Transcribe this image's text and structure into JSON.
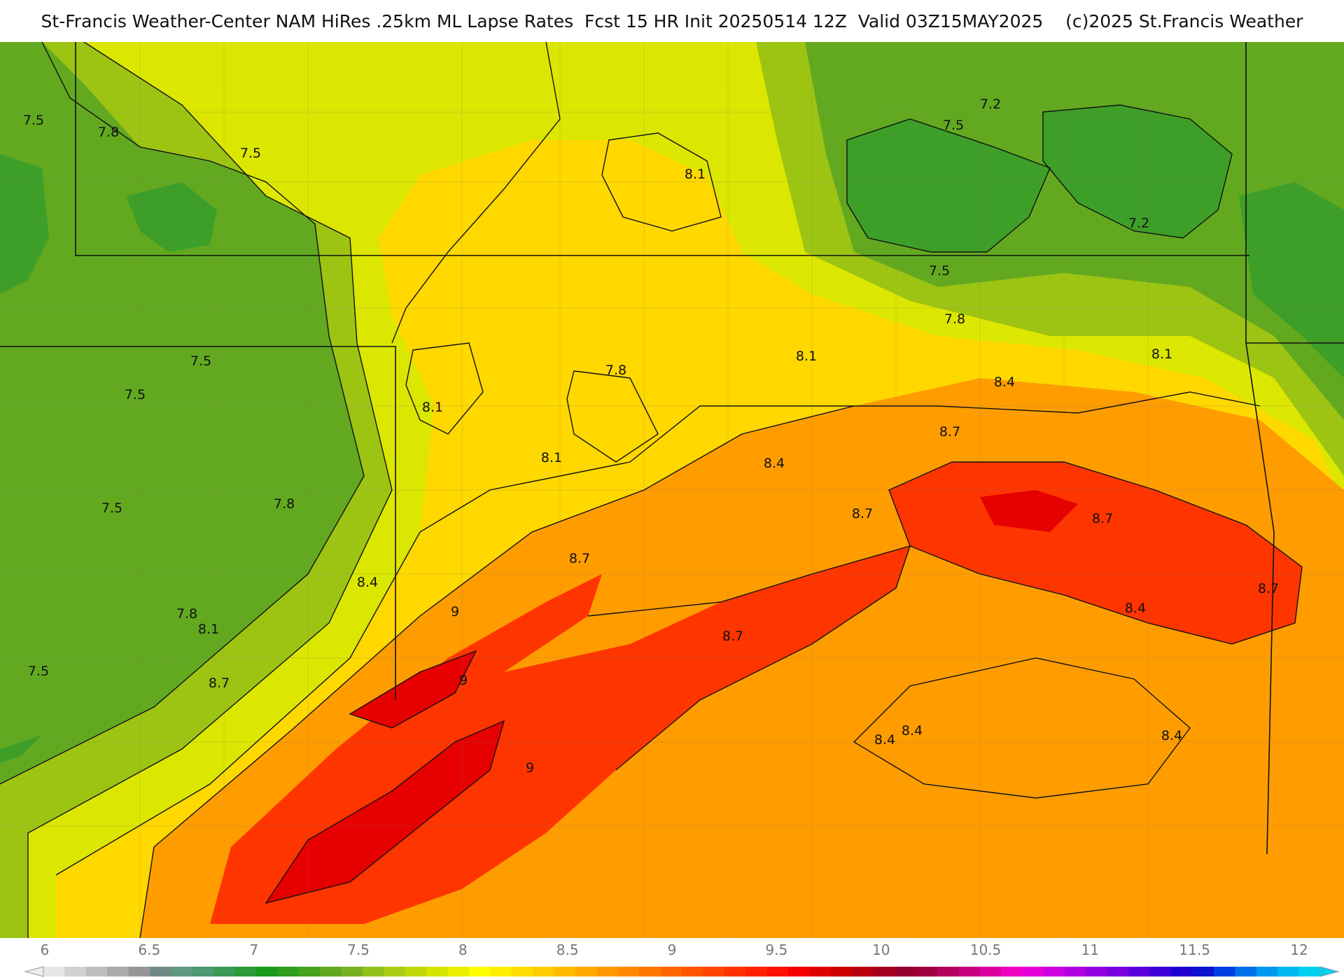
{
  "header": {
    "title": "St-Francis Weather-Center NAM HiRes .25km ML Lapse Rates  Fcst 15 HR Init 20250514 12Z  Valid 03Z15MAY2025    (c)2025 St.Francis Weather"
  },
  "map": {
    "field": "ML Lapse Rates",
    "contour_labels": [
      "7.5",
      "7.8",
      "7.5",
      "8.1",
      "7.2",
      "7.5",
      "7.2",
      "7.5",
      "7.8",
      "8.1",
      "7.5",
      "7.5",
      "8.1",
      "7.8",
      "8.1",
      "8.4",
      "8.1",
      "8.4",
      "8.7",
      "7.5",
      "7.8",
      "8.7",
      "8.7",
      "8.7",
      "8.4",
      "7.8",
      "8.1",
      "9",
      "8.7",
      "8.7",
      "8.4",
      "7.5",
      "8.7",
      "9",
      "9",
      "8.4",
      "8.4",
      "8.4"
    ]
  },
  "color_scale": {
    "tick_labels": [
      "6",
      "6.5",
      "7",
      "7.5",
      "8",
      "8.5",
      "9",
      "9.5",
      "10",
      "10.5",
      "11",
      "11.5",
      "12"
    ],
    "min": 6,
    "max": 12,
    "step": 0.1,
    "colors": [
      "#e6e6e6",
      "#d2d2d2",
      "#bebebe",
      "#aaaaaa",
      "#969696",
      "#6f8a86",
      "#5f9a80",
      "#4d9970",
      "#3b9a55",
      "#2a9a38",
      "#1a9a1a",
      "#2f9e1c",
      "#47a31e",
      "#5fa820",
      "#78b020",
      "#92c01c",
      "#a9cd14",
      "#c0d90a",
      "#d6e500",
      "#ebef00",
      "#ffff00",
      "#ffee00",
      "#ffdd00",
      "#ffcc00",
      "#ffbb00",
      "#ffaa00",
      "#ff9900",
      "#ff8800",
      "#ff7700",
      "#ff6600",
      "#ff5500",
      "#ff4400",
      "#ff3300",
      "#ff2200",
      "#ff1100",
      "#f50000",
      "#e00000",
      "#cc0000",
      "#b80010",
      "#a50020",
      "#960030",
      "#a00040",
      "#b40060",
      "#c80080",
      "#dc00a0",
      "#f000c0",
      "#e600d8",
      "#cc00e0",
      "#b000e0",
      "#9400e0",
      "#7800e0",
      "#5a00dc",
      "#3c00d8",
      "#2000d0",
      "#0a14d0",
      "#0040e0",
      "#0070ea",
      "#0098f0",
      "#00b8f2",
      "#00d0f0"
    ],
    "map_colors": {
      "c72": "#3e9f28",
      "c75": "#62a920",
      "c78": "#9dc412",
      "c81": "#dbe700",
      "c84": "#ffd800",
      "c87": "#ff9d00",
      "c90": "#ff3500",
      "c93": "#e60000"
    }
  }
}
